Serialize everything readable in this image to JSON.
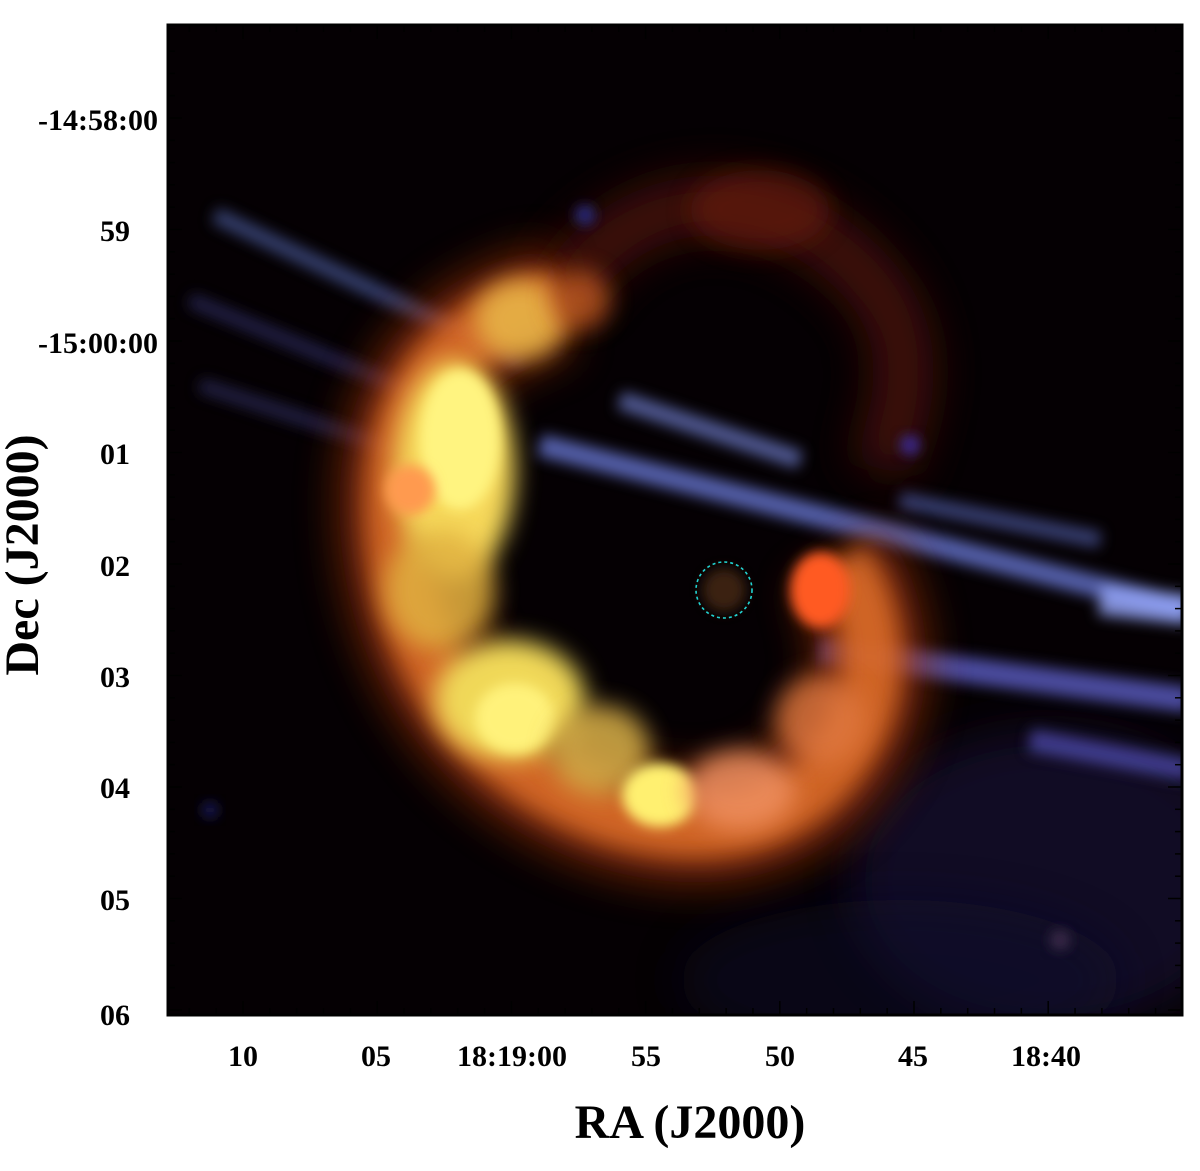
{
  "figure": {
    "x_axis": {
      "label": "RA (J2000)",
      "ticks": [
        "10",
        "05",
        "18:19:00",
        "55",
        "50",
        "45",
        "18:40"
      ]
    },
    "y_axis": {
      "label": "Dec (J2000)",
      "ticks": [
        "-14:58:00",
        "59",
        "-15:00:00",
        "01",
        "02",
        "03",
        "04",
        "05",
        "06"
      ]
    },
    "image": {
      "description_type": "false-color RGB astronomical image",
      "colors": {
        "background": "#000000",
        "shell_bright": "#fff27a",
        "shell_orange": "#ff8a3a",
        "shell_red": "#b0301a",
        "streaks": "#8a9cff",
        "source_marker": "#22d3d3"
      }
    }
  }
}
